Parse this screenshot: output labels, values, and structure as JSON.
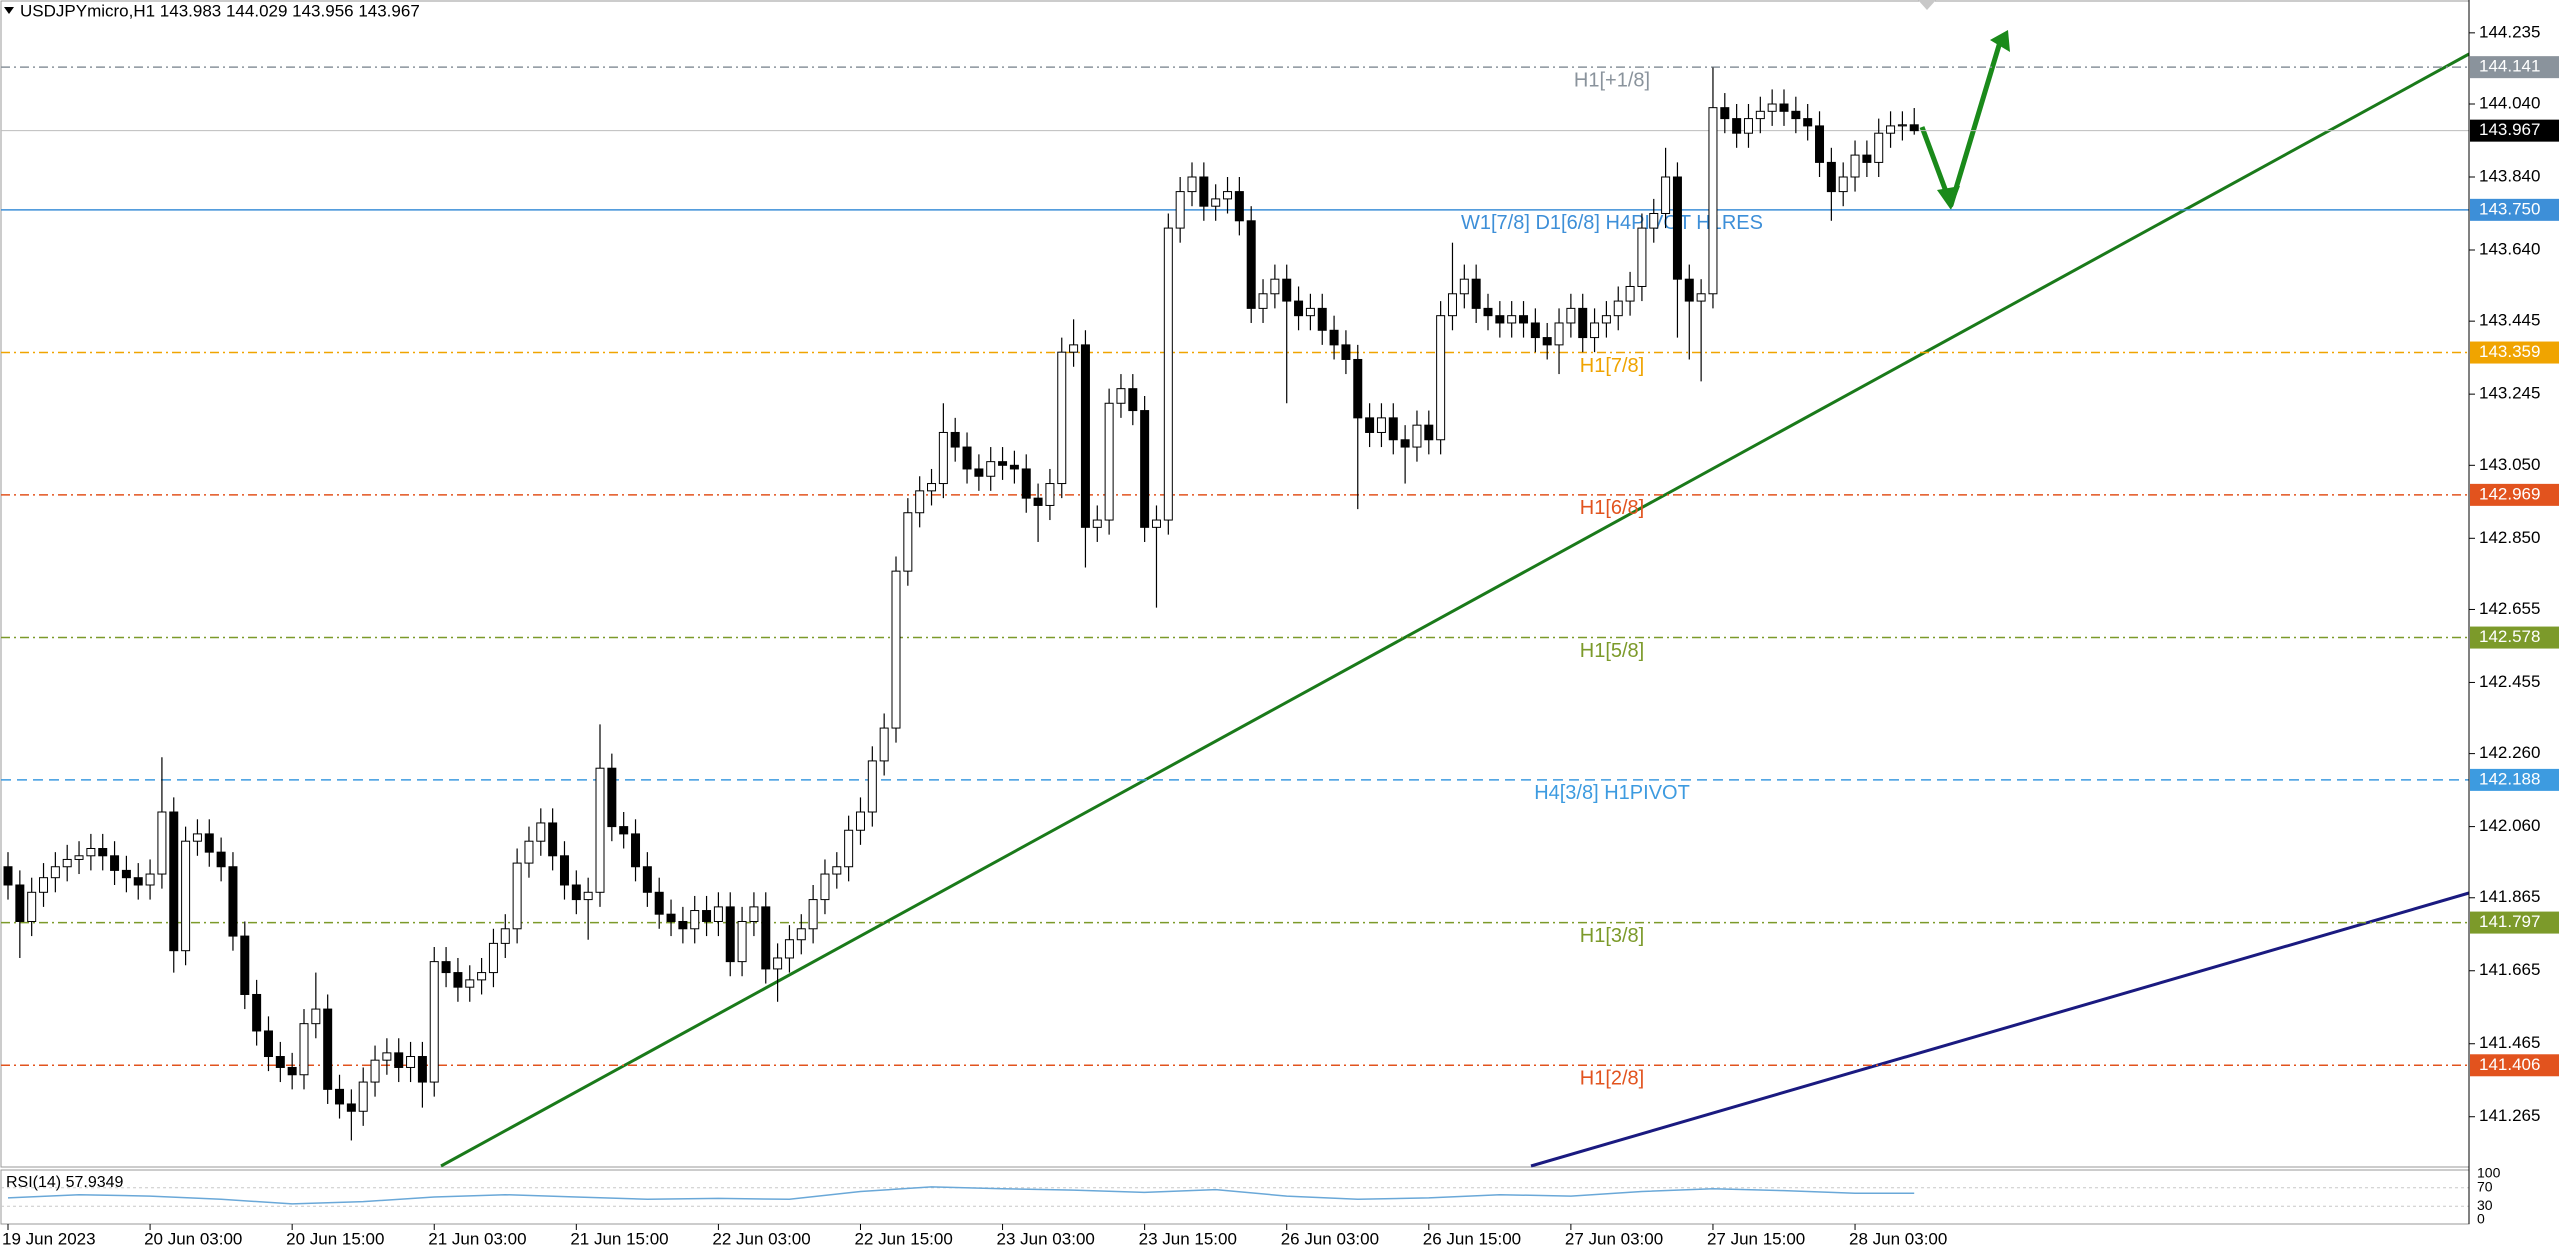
{
  "chart_data": {
    "type": "candlestick",
    "title": "USDJPYmicro,H1 143.983 144.029 143.956 143.967",
    "categories": [
      "19 Jun 2023",
      null,
      null,
      null,
      null,
      null,
      null,
      null,
      null,
      null,
      null,
      null,
      "20 Jun 03:00",
      null,
      null,
      null,
      null,
      null,
      null,
      null,
      null,
      null,
      null,
      null,
      "20 Jun 15:00",
      null,
      null,
      null,
      null,
      null,
      null,
      null,
      null,
      null,
      null,
      null,
      "21 Jun 03:00",
      null,
      null,
      null,
      null,
      null,
      null,
      null,
      null,
      null,
      null,
      null,
      "21 Jun 15:00",
      null,
      null,
      null,
      null,
      null,
      null,
      null,
      null,
      null,
      null,
      null,
      "22 Jun 03:00",
      null,
      null,
      null,
      null,
      null,
      null,
      null,
      null,
      null,
      null,
      null,
      "22 Jun 15:00",
      null,
      null,
      null,
      null,
      null,
      null,
      null,
      null,
      null,
      null,
      null,
      "23 Jun 03:00",
      null,
      null,
      null,
      null,
      null,
      null,
      null,
      null,
      null,
      null,
      null,
      "23 Jun 15:00",
      null,
      null,
      null,
      null,
      null,
      null,
      null,
      null,
      null,
      null,
      null,
      "26 Jun 03:00",
      null,
      null,
      null,
      null,
      null,
      null,
      null,
      null,
      null,
      null,
      null,
      "26 Jun 15:00",
      null,
      null,
      null,
      null,
      null,
      null,
      null,
      null,
      null,
      null,
      null,
      "27 Jun 03:00",
      null,
      null,
      null,
      null,
      null,
      null,
      null,
      null,
      null,
      null,
      null,
      "27 Jun 15:00",
      null,
      null,
      null,
      null,
      null,
      null,
      null,
      null,
      null,
      null,
      null,
      "28 Jun 03:00",
      null,
      null,
      null,
      null,
      null
    ],
    "open": [
      141.95,
      141.9,
      141.8,
      141.88,
      141.92,
      141.95,
      141.97,
      141.98,
      142.0,
      141.98,
      141.94,
      141.92,
      141.9,
      141.93,
      142.1,
      141.72,
      142.02,
      142.04,
      141.99,
      141.95,
      141.76,
      141.6,
      141.5,
      141.43,
      141.4,
      141.38,
      141.52,
      141.56,
      141.34,
      141.3,
      141.28,
      141.36,
      141.42,
      141.44,
      141.4,
      141.43,
      141.36,
      141.69,
      141.66,
      141.62,
      141.64,
      141.66,
      141.74,
      141.78,
      141.96,
      142.02,
      142.07,
      141.98,
      141.9,
      141.86,
      141.88,
      142.22,
      142.06,
      142.04,
      141.95,
      141.88,
      141.82,
      141.8,
      141.78,
      141.83,
      141.8,
      141.84,
      141.69,
      141.8,
      141.84,
      141.67,
      141.7,
      141.75,
      141.78,
      141.86,
      141.93,
      141.95,
      142.05,
      142.1,
      142.24,
      142.33,
      142.76,
      142.92,
      142.98,
      143.0,
      143.14,
      143.1,
      143.04,
      143.02,
      143.06,
      143.05,
      143.04,
      142.96,
      142.94,
      143.0,
      143.36,
      143.38,
      142.88,
      142.9,
      143.22,
      143.26,
      143.2,
      142.88,
      142.9,
      143.7,
      143.8,
      143.84,
      143.76,
      143.78,
      143.8,
      143.72,
      143.48,
      143.52,
      143.56,
      143.5,
      143.46,
      143.48,
      143.42,
      143.38,
      143.34,
      143.18,
      143.14,
      143.18,
      143.12,
      143.1,
      143.16,
      143.12,
      143.46,
      143.52,
      143.56,
      143.48,
      143.46,
      143.44,
      143.46,
      143.44,
      143.4,
      143.38,
      143.44,
      143.48,
      143.4,
      143.44,
      143.46,
      143.5,
      143.54,
      143.7,
      143.74,
      143.84,
      143.56,
      143.5,
      143.52,
      144.03,
      144.0,
      143.96,
      144.0,
      144.02,
      144.04,
      144.02,
      144.0,
      143.98,
      143.88,
      143.8,
      143.84,
      143.9,
      143.88,
      143.96,
      143.98,
      143.983
    ],
    "high": [
      141.99,
      141.94,
      141.92,
      141.96,
      141.99,
      142.01,
      142.02,
      142.04,
      142.04,
      142.02,
      141.98,
      141.96,
      141.97,
      142.25,
      142.14,
      142.06,
      142.08,
      142.08,
      142.03,
      141.99,
      141.8,
      141.64,
      141.54,
      141.47,
      141.44,
      141.56,
      141.66,
      141.6,
      141.38,
      141.34,
      141.4,
      141.46,
      141.48,
      141.48,
      141.47,
      141.47,
      141.73,
      141.73,
      141.7,
      141.68,
      141.7,
      141.78,
      141.82,
      142.0,
      142.06,
      142.11,
      142.11,
      142.02,
      141.94,
      141.92,
      142.34,
      142.26,
      142.1,
      142.08,
      141.99,
      141.92,
      141.86,
      141.84,
      141.87,
      141.87,
      141.88,
      141.88,
      141.84,
      141.88,
      141.88,
      141.74,
      141.79,
      141.82,
      141.9,
      141.97,
      141.99,
      142.09,
      142.14,
      142.28,
      142.37,
      142.8,
      142.96,
      143.02,
      143.04,
      143.22,
      143.18,
      143.14,
      143.08,
      143.1,
      143.1,
      143.09,
      143.08,
      143.0,
      143.04,
      143.4,
      143.45,
      143.42,
      142.94,
      143.26,
      143.3,
      143.3,
      143.24,
      142.94,
      143.74,
      143.84,
      143.88,
      143.88,
      143.82,
      143.84,
      143.84,
      143.76,
      143.56,
      143.6,
      143.6,
      143.54,
      143.52,
      143.52,
      143.46,
      143.42,
      143.38,
      143.22,
      143.22,
      143.22,
      143.16,
      143.2,
      143.2,
      143.5,
      143.66,
      143.6,
      143.6,
      143.52,
      143.5,
      143.5,
      143.5,
      143.48,
      143.44,
      143.48,
      143.52,
      143.52,
      143.48,
      143.5,
      143.54,
      143.58,
      143.74,
      143.78,
      143.92,
      143.88,
      143.6,
      143.56,
      144.14,
      144.07,
      144.04,
      144.04,
      144.06,
      144.08,
      144.08,
      144.06,
      144.04,
      144.02,
      143.92,
      143.88,
      143.94,
      143.94,
      144.0,
      144.02,
      144.02,
      144.029
    ],
    "low": [
      141.86,
      141.7,
      141.76,
      141.84,
      141.88,
      141.91,
      141.93,
      141.94,
      141.94,
      141.9,
      141.88,
      141.86,
      141.86,
      141.89,
      141.66,
      141.68,
      141.98,
      141.95,
      141.91,
      141.72,
      141.56,
      141.46,
      141.39,
      141.36,
      141.34,
      141.34,
      141.48,
      141.3,
      141.26,
      141.2,
      141.24,
      141.32,
      141.38,
      141.36,
      141.36,
      141.29,
      141.32,
      141.62,
      141.58,
      141.58,
      141.6,
      141.62,
      141.7,
      141.74,
      141.92,
      141.98,
      141.94,
      141.86,
      141.82,
      141.75,
      141.84,
      142.02,
      142.0,
      141.91,
      141.84,
      141.78,
      141.76,
      141.74,
      141.74,
      141.76,
      141.76,
      141.65,
      141.65,
      141.76,
      141.63,
      141.58,
      141.66,
      141.71,
      141.74,
      141.82,
      141.89,
      141.91,
      142.01,
      142.06,
      142.2,
      142.29,
      142.72,
      142.88,
      142.94,
      142.96,
      143.06,
      143.0,
      142.98,
      142.98,
      143.01,
      143.0,
      142.92,
      142.84,
      142.9,
      142.96,
      143.32,
      142.77,
      142.84,
      142.86,
      143.18,
      143.16,
      142.84,
      142.66,
      142.86,
      143.66,
      143.76,
      143.72,
      143.72,
      143.74,
      143.68,
      143.44,
      143.44,
      143.48,
      143.22,
      143.42,
      143.42,
      143.38,
      143.34,
      143.3,
      142.93,
      143.1,
      143.1,
      143.08,
      143.0,
      143.06,
      143.08,
      143.08,
      143.42,
      143.48,
      143.44,
      143.42,
      143.4,
      143.4,
      143.4,
      143.36,
      143.34,
      143.3,
      143.4,
      143.36,
      143.36,
      143.4,
      143.42,
      143.46,
      143.5,
      143.66,
      143.7,
      143.4,
      143.34,
      143.28,
      143.48,
      143.96,
      143.92,
      143.92,
      143.96,
      143.98,
      143.98,
      143.96,
      143.94,
      143.84,
      143.72,
      143.76,
      143.8,
      143.84,
      143.84,
      143.92,
      143.94,
      143.956
    ],
    "close": [
      141.9,
      141.8,
      141.88,
      141.92,
      141.95,
      141.97,
      141.98,
      142.0,
      141.98,
      141.94,
      141.92,
      141.9,
      141.93,
      142.1,
      141.72,
      142.02,
      142.04,
      141.99,
      141.95,
      141.76,
      141.6,
      141.5,
      141.43,
      141.4,
      141.38,
      141.52,
      141.56,
      141.34,
      141.3,
      141.28,
      141.36,
      141.42,
      141.44,
      141.4,
      141.43,
      141.36,
      141.69,
      141.66,
      141.62,
      141.64,
      141.66,
      141.74,
      141.78,
      141.96,
      142.02,
      142.07,
      141.98,
      141.9,
      141.86,
      141.88,
      142.22,
      142.06,
      142.04,
      141.95,
      141.88,
      141.82,
      141.8,
      141.78,
      141.83,
      141.8,
      141.84,
      141.69,
      141.8,
      141.84,
      141.67,
      141.7,
      141.75,
      141.78,
      141.86,
      141.93,
      141.95,
      142.05,
      142.1,
      142.24,
      142.33,
      142.76,
      142.92,
      142.98,
      143.0,
      143.14,
      143.1,
      143.04,
      143.02,
      143.06,
      143.05,
      143.04,
      142.96,
      142.94,
      143.0,
      143.36,
      143.38,
      142.88,
      142.9,
      143.22,
      143.26,
      143.2,
      142.88,
      142.9,
      143.7,
      143.8,
      143.84,
      143.76,
      143.78,
      143.8,
      143.72,
      143.48,
      143.52,
      143.56,
      143.5,
      143.46,
      143.48,
      143.42,
      143.38,
      143.34,
      143.18,
      143.14,
      143.18,
      143.12,
      143.1,
      143.16,
      143.12,
      143.46,
      143.52,
      143.56,
      143.48,
      143.46,
      143.44,
      143.46,
      143.44,
      143.4,
      143.38,
      143.44,
      143.48,
      143.4,
      143.44,
      143.46,
      143.5,
      143.54,
      143.7,
      143.74,
      143.84,
      143.56,
      143.5,
      143.52,
      144.03,
      144.0,
      143.96,
      144.0,
      144.02,
      144.04,
      144.02,
      144.0,
      143.98,
      143.88,
      143.8,
      143.84,
      143.9,
      143.88,
      143.96,
      143.98,
      143.983,
      143.967
    ],
    "ylim": [
      141.13,
      144.325
    ],
    "yticks": [
      144.235,
      {
        "value": 144.04,
        "label": "144.040"
      },
      {
        "value": 143.84,
        "label": "143.840"
      },
      {
        "value": 143.64,
        "label": "143.640"
      },
      143.445,
      143.245,
      {
        "value": 143.05,
        "label": "143.050"
      },
      {
        "value": 142.85,
        "label": "142.850"
      },
      142.655,
      142.455,
      {
        "value": 142.26,
        "label": "142.260"
      },
      {
        "value": 142.06,
        "label": "142.060"
      },
      141.865,
      141.665,
      141.465,
      141.265
    ],
    "levels": [
      {
        "name": "H1[+1/8]",
        "price": 144.141,
        "color": "#8a939c",
        "line_style": "dashdot"
      },
      {
        "name": "W1[7/8] D1[6/8] H4PIVOT H1RES",
        "price": {
          "value": 143.75,
          "label": "143.750"
        },
        "color": "#3d8fd8",
        "line_style": "solid"
      },
      {
        "name": "H1[7/8]",
        "price": 143.359,
        "color": "#f0a400",
        "line_style": "dashdot"
      },
      {
        "name": "H1[6/8]",
        "price": 142.969,
        "color": "#e2531e",
        "line_style": "dashdot"
      },
      {
        "name": "H1[5/8]",
        "price": 142.578,
        "color": "#7c9a2a",
        "line_style": "dashdot"
      },
      {
        "name": "H4[3/8] H1PIVOT",
        "price": 142.188,
        "color": "#3d9be0",
        "line_style": "dashed"
      },
      {
        "name": "H1[3/8]",
        "price": 141.797,
        "color": "#7c9a2a",
        "line_style": "dashdot"
      },
      {
        "name": "H1[2/8]",
        "price": 141.406,
        "color": "#e2531e",
        "line_style": "dashdot"
      }
    ],
    "last_price": 143.967,
    "rsi": {
      "name": "RSI(14) 57.9349",
      "color": "#6aa8d8",
      "x": [
        0,
        6,
        12,
        18,
        24,
        30,
        36,
        42,
        48,
        54,
        60,
        66,
        72,
        78,
        84,
        90,
        96,
        102,
        108,
        114,
        120,
        126,
        132,
        138,
        144,
        150,
        156,
        161
      ],
      "values": [
        48,
        55,
        52,
        45,
        35,
        40,
        50,
        55,
        50,
        45,
        47,
        45,
        62,
        72,
        68,
        65,
        60,
        66,
        52,
        45,
        48,
        55,
        52,
        62,
        68,
        64,
        58,
        57.9349
      ],
      "ylim": [
        0,
        100
      ],
      "yticks": [
        100,
        70,
        30,
        0
      ]
    }
  }
}
